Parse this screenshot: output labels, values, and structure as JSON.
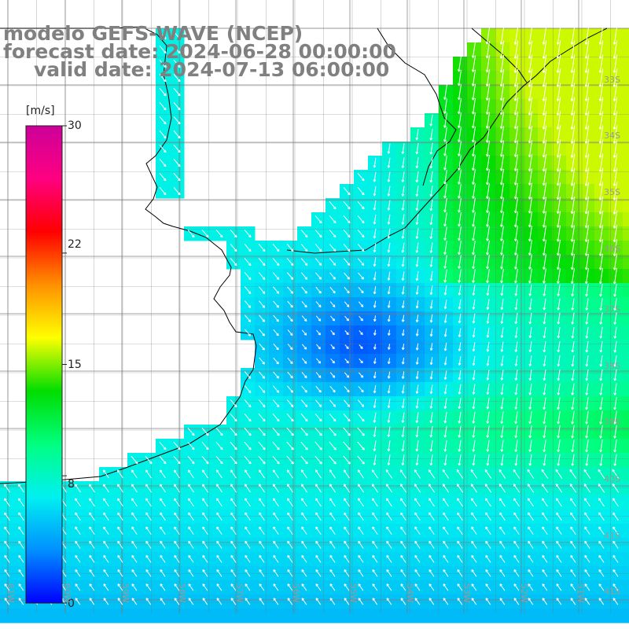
{
  "title": {
    "line1": "modelo GEFS-WAVE (NCEP)",
    "line2": "forecast date: 2024-06-28 00:00:00",
    "line3": "valid date: 2024-07-13 06:00:00"
  },
  "colorbar": {
    "unit": "[m/s]",
    "ticks": [
      {
        "label": "30",
        "value": 30
      },
      {
        "label": "22",
        "value": 22
      },
      {
        "label": "15",
        "value": 15
      },
      {
        "label": "8",
        "value": 8
      },
      {
        "label": "0",
        "value": 0
      }
    ],
    "colors": [
      "#0000ff",
      "#0090ff",
      "#00f0f0",
      "#00ff80",
      "#00dd00",
      "#ffff00",
      "#ff9000",
      "#ff0000",
      "#ff0080",
      "#cc0099"
    ]
  },
  "lat_labels": [
    "33S",
    "34S",
    "35S",
    "36S",
    "37S",
    "38S",
    "39S",
    "40S",
    "41S"
  ],
  "lon_labels": [
    "61W",
    "60W",
    "59W",
    "58W",
    "57W",
    "56W",
    "55W",
    "54W",
    "53W",
    "52W",
    "51W"
  ]
}
